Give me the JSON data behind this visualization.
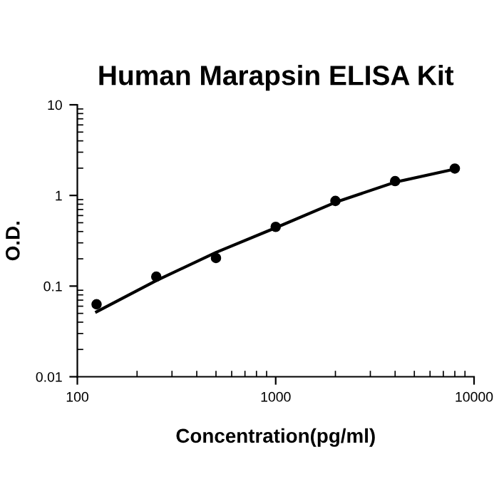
{
  "chart_data": {
    "type": "scatter",
    "title": "Human Marapsin ELISA Kit",
    "xlabel": "Concentration(pg/ml)",
    "ylabel": "O.D.",
    "log": "xy",
    "xlim": [
      100,
      10000
    ],
    "ylim": [
      0.01,
      10
    ],
    "xticks": [
      100,
      1000,
      10000
    ],
    "yticks": [
      0.01,
      0.1,
      1,
      10
    ],
    "grid": false,
    "legend": false,
    "series": [
      {
        "color": "#000000",
        "marker": "circle",
        "x": [
          125,
          250,
          500,
          1000,
          2000,
          4000,
          8000
        ],
        "values": [
          0.063,
          0.127,
          0.204,
          0.45,
          0.87,
          1.44,
          1.98
        ]
      },
      {
        "type": "line",
        "color": "#000000",
        "marker": "none",
        "line_style": "solid",
        "x": [
          125,
          250,
          500,
          1000,
          2000,
          4000,
          8000
        ],
        "values": [
          0.052,
          0.115,
          0.235,
          0.44,
          0.84,
          1.4,
          1.95
        ]
      }
    ]
  }
}
